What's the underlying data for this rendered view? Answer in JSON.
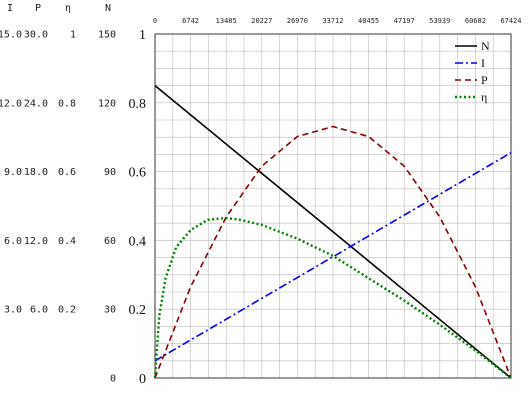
{
  "chart_data": {
    "type": "line",
    "x_ticks": [
      "0",
      "6742",
      "13485",
      "20227",
      "26970",
      "33712",
      "40455",
      "47197",
      "53939",
      "60682",
      "67424"
    ],
    "xlim": [
      0,
      67424
    ],
    "ylim": [
      0,
      1
    ],
    "main_y_ticks": [
      "0",
      "0.2",
      "0.4",
      "0.6",
      "0.8",
      "1"
    ],
    "grid": true,
    "grid_minor_divisions": 2,
    "legend_position": "top-right",
    "scale_headers": [
      "I",
      "P",
      "η",
      "N"
    ],
    "scale_rows": [
      [
        "",
        "",
        "",
        "0"
      ],
      [
        "3.0",
        "6.0",
        "0.2",
        "30"
      ],
      [
        "6.0",
        "12.0",
        "0.4",
        "60"
      ],
      [
        "9.0",
        "18.0",
        "0.6",
        "90"
      ],
      [
        "12.0",
        "24.0",
        "0.8",
        "120"
      ],
      [
        "15.0",
        "30.0",
        "1",
        "150"
      ]
    ],
    "series": [
      {
        "name": "N",
        "color": "#000000",
        "style": "solid",
        "x": [
          0,
          67424
        ],
        "y": [
          0.85,
          0.0
        ]
      },
      {
        "name": "I",
        "color": "#0000ee",
        "style": "dashdot",
        "x": [
          0,
          67424
        ],
        "y": [
          0.05,
          0.655
        ]
      },
      {
        "name": "P",
        "color": "#8b0000",
        "style": "dashed",
        "x": [
          0,
          6742,
          13485,
          20227,
          26970,
          33712,
          40455,
          47197,
          53939,
          60682,
          67424
        ],
        "y": [
          0.0,
          0.265,
          0.468,
          0.616,
          0.702,
          0.731,
          0.702,
          0.616,
          0.468,
          0.265,
          0.0
        ]
      },
      {
        "name": "η",
        "color": "#008000",
        "style": "dotted",
        "x": [
          0,
          800,
          2000,
          4000,
          6742,
          10000,
          13485,
          16000,
          20227,
          26970,
          33712,
          40455,
          47197,
          53939,
          60682,
          67424
        ],
        "y": [
          0.0,
          0.18,
          0.29,
          0.38,
          0.43,
          0.46,
          0.465,
          0.46,
          0.445,
          0.405,
          0.355,
          0.29,
          0.225,
          0.155,
          0.08,
          0.0
        ]
      }
    ]
  }
}
